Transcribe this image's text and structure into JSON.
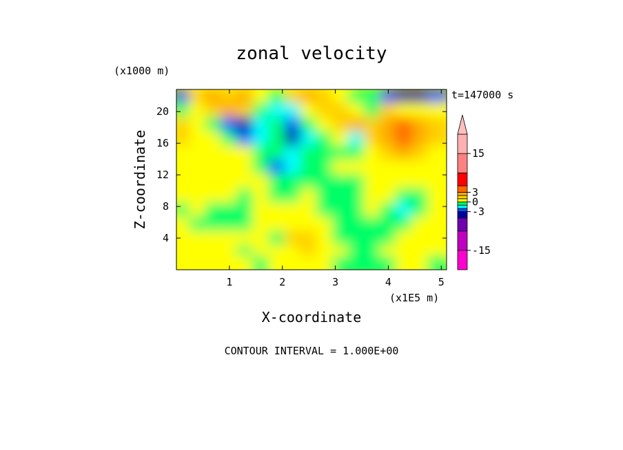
{
  "chart_data": {
    "type": "heatmap",
    "title": "zonal velocity",
    "xlabel": "X-coordinate",
    "ylabel": "Z-coordinate",
    "x_unit_label": "(x1E5 m)",
    "y_unit_label": "(x1000 m)",
    "xlim": [
      0,
      5.1
    ],
    "ylim": [
      0,
      22.8
    ],
    "x_ticks": [
      "1",
      "2",
      "3",
      "4",
      "5"
    ],
    "x_tick_values": [
      1,
      2,
      3,
      4,
      5
    ],
    "y_ticks": [
      "4",
      "8",
      "12",
      "16",
      "20"
    ],
    "y_tick_values": [
      4,
      8,
      12,
      16,
      20
    ],
    "time_label": "t=147000 s",
    "footer": "CONTOUR INTERVAL = 1.000E+00",
    "colorbar": {
      "labels": [
        "15",
        "3",
        "0",
        "-3",
        "-15"
      ],
      "label_values": [
        15,
        3,
        0,
        -3,
        -15
      ],
      "levels": [
        -21,
        -15,
        -9,
        -5,
        -3,
        -2,
        -1,
        0,
        1,
        2,
        3,
        5,
        9,
        15,
        21
      ],
      "colors": [
        "#ff00d0",
        "#c000c0",
        "#7000b0",
        "#0000a0",
        "#0055ff",
        "#00ffff",
        "#00ff66",
        "#ffff00",
        "#ffd000",
        "#ffaa00",
        "#ff6600",
        "#ff0000",
        "#ff8080",
        "#ffb0b0"
      ]
    },
    "x": [
      0.15,
      0.45,
      0.75,
      1.05,
      1.35,
      1.65,
      1.95,
      2.25,
      2.55,
      2.85,
      3.15,
      3.45,
      3.75,
      4.05,
      4.35,
      4.65,
      4.95
    ],
    "z": [
      21.6,
      19.8,
      18.0,
      16.2,
      14.4,
      12.6,
      10.8,
      9.0,
      7.2,
      5.4,
      3.6,
      1.8,
      0.45
    ],
    "values": [
      [
        -3,
        1,
        2,
        1,
        2,
        0,
        -1,
        1,
        2,
        1,
        0,
        -1,
        -1,
        -3,
        -4,
        -4,
        -3
      ],
      [
        -1,
        0,
        1,
        2,
        1,
        -1,
        -2,
        -2,
        0,
        1,
        1,
        0,
        -1,
        1,
        0,
        0,
        0
      ],
      [
        1,
        0,
        -1,
        -3,
        -4,
        -2,
        -1,
        -3,
        -1,
        0,
        1,
        2,
        1,
        2,
        3,
        2,
        1
      ],
      [
        1,
        0,
        0,
        -1,
        -3,
        -2,
        -1,
        -4,
        -2,
        -1,
        0,
        -2,
        1,
        2,
        3,
        2,
        1
      ],
      [
        0,
        0,
        0,
        0,
        0,
        -1,
        -1,
        -2,
        -1,
        -1,
        -1,
        -1,
        0,
        1,
        2,
        1,
        0
      ],
      [
        0,
        0,
        0,
        0,
        0,
        -1,
        -3,
        -2,
        -1,
        -1,
        0,
        0,
        0,
        0,
        0,
        0,
        0
      ],
      [
        0,
        0,
        0,
        0,
        0,
        0,
        -1,
        -1,
        -1,
        -1,
        -1,
        -1,
        0,
        0,
        0,
        0,
        0
      ],
      [
        0,
        0,
        0,
        0,
        -1,
        0,
        -1,
        -1,
        0,
        -1,
        -1,
        -1,
        0,
        0,
        -1,
        -1,
        0
      ],
      [
        -1,
        0,
        -1,
        -1,
        -1,
        0,
        0,
        0,
        0,
        -1,
        -1,
        -1,
        0,
        -1,
        -2,
        -1,
        0
      ],
      [
        0,
        -1,
        -1,
        -1,
        -1,
        0,
        0,
        0,
        0,
        0,
        -1,
        -1,
        -1,
        -1,
        -1,
        0,
        0
      ],
      [
        0,
        0,
        0,
        0,
        0,
        0,
        -1,
        1,
        1,
        0,
        -1,
        -1,
        -1,
        -1,
        0,
        0,
        0
      ],
      [
        0,
        0,
        0,
        0,
        -1,
        0,
        0,
        0,
        1,
        0,
        0,
        -1,
        -1,
        0,
        0,
        0,
        0
      ],
      [
        0,
        0,
        0,
        0,
        0,
        -1,
        0,
        0,
        0,
        0,
        -1,
        -1,
        -1,
        -1,
        0,
        0,
        -1
      ]
    ]
  }
}
